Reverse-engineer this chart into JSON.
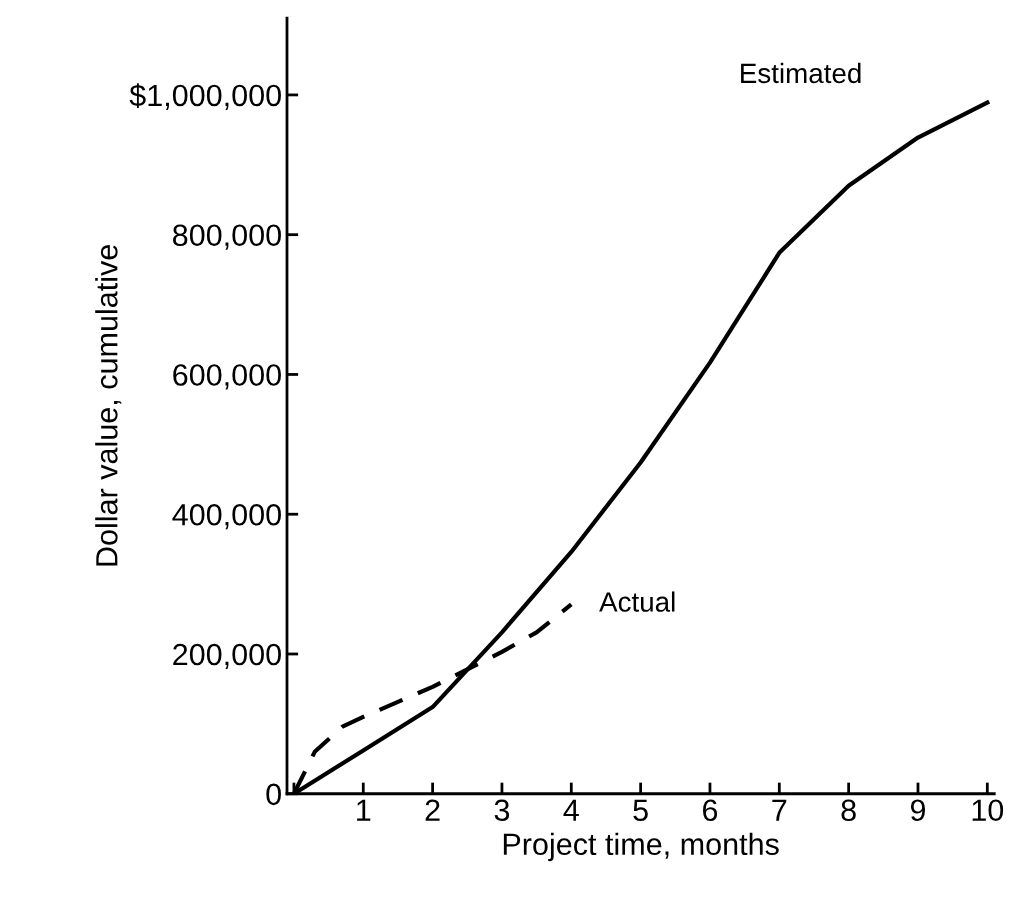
{
  "chart_data": {
    "type": "line",
    "xlabel": "Project time, months",
    "ylabel": "Dollar value, cumulative",
    "xlim": [
      -0.1,
      10.1
    ],
    "ylim": [
      0,
      1110000
    ],
    "xticks": [
      {
        "value": 0,
        "label": null
      },
      1,
      2,
      3,
      4,
      5,
      6,
      7,
      8,
      9,
      10
    ],
    "yticks": [
      0,
      {
        "value": 200000,
        "label": "200,000"
      },
      {
        "value": 400000,
        "label": "400,000"
      },
      {
        "value": 600000,
        "label": "600,000"
      },
      {
        "value": 800000,
        "label": "800,000"
      },
      {
        "value": 1000000,
        "label": "$1,000,000"
      }
    ],
    "grid": false,
    "legend": false,
    "series": [
      {
        "name": "Estimated",
        "color": "#000000",
        "line_style": "solid",
        "x": [
          0,
          1,
          2,
          3,
          4,
          5,
          6,
          7,
          8,
          9,
          10
        ],
        "values": [
          0,
          62000,
          124000,
          231000,
          346000,
          474000,
          617000,
          774000,
          870000,
          939000,
          989000
        ]
      },
      {
        "name": "Actual",
        "color": "#000000",
        "line_style": "dashed",
        "x": [
          0,
          0.3,
          0.7,
          1,
          2,
          3,
          3.5,
          4
        ],
        "values": [
          0,
          60000,
          96000,
          110000,
          153000,
          203000,
          231000,
          271000
        ]
      }
    ]
  }
}
